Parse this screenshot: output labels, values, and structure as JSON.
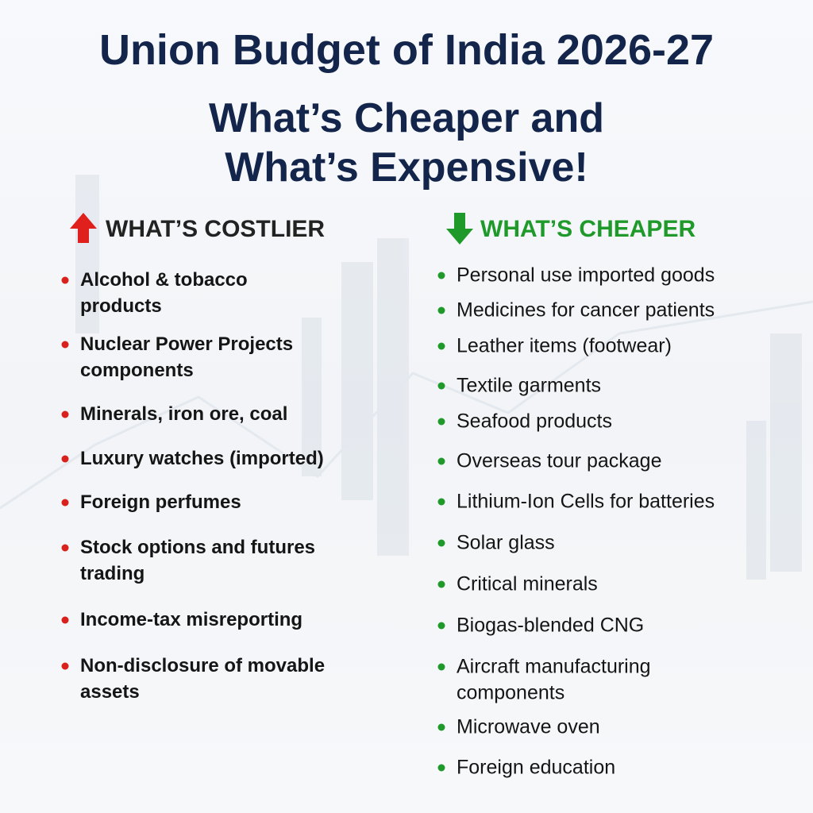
{
  "header": {
    "title": "Union Budget of India 2026-27",
    "subtitle": [
      "What’s Cheaper and",
      "What’s Expensive!"
    ]
  },
  "costlier": {
    "heading": "WHAT’S COSTLIER",
    "items": [
      [
        "Alcohol & tobacco",
        "products"
      ],
      [
        "Nuclear Power Projects",
        "components"
      ],
      [
        "Minerals, iron ore, coal"
      ],
      [
        "Luxury watches (imported)"
      ],
      [
        "Foreign perfumes"
      ],
      [
        "Stock options and futures",
        "trading"
      ],
      [
        "Income-tax misreporting"
      ],
      [
        "Non-disclosure of movable",
        "assets"
      ]
    ]
  },
  "cheaper": {
    "heading": "WHAT’S CHEAPER",
    "items": [
      [
        "Personal use imported goods"
      ],
      [
        "Medicines for cancer patients"
      ],
      [
        "Leather items (footwear)"
      ],
      [
        "Textile garments"
      ],
      [
        "Seafood products"
      ],
      [
        "Overseas tour package"
      ],
      [
        "Lithium-Ion Cells for batteries"
      ],
      [
        "Solar glass"
      ],
      [
        "Critical minerals"
      ],
      [
        "Biogas-blended CNG"
      ],
      [
        "Aircraft manufacturing",
        "components"
      ],
      [
        "Microwave oven"
      ],
      [
        "Foreign education"
      ]
    ]
  }
}
